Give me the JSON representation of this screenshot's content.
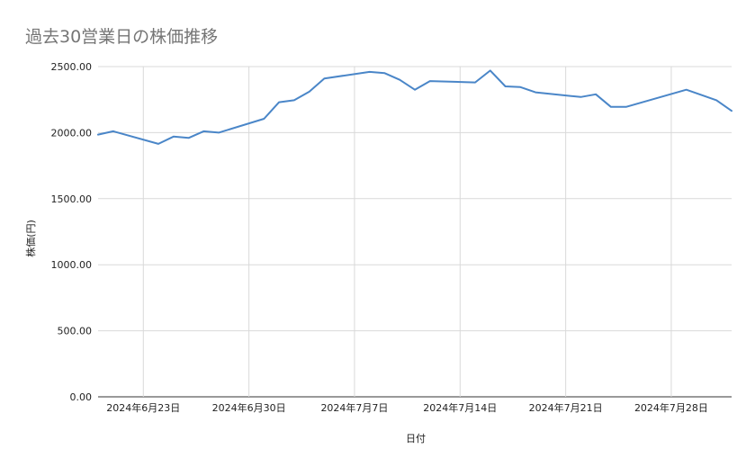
{
  "chart_data": {
    "type": "line",
    "title": "過去30営業日の株価推移",
    "xlabel": "日付",
    "ylabel": "株価(円)",
    "ylim": [
      0,
      2500
    ],
    "yticks": [
      "0.00",
      "500.00",
      "1000.00",
      "1500.00",
      "2000.00",
      "2500.00"
    ],
    "xticks": [
      {
        "date": "2024-06-23",
        "label": "2024年6月23日"
      },
      {
        "date": "2024-06-30",
        "label": "2024年6月30日"
      },
      {
        "date": "2024-07-07",
        "label": "2024年7月7日"
      },
      {
        "date": "2024-07-14",
        "label": "2024年7月14日"
      },
      {
        "date": "2024-07-21",
        "label": "2024年7月21日"
      },
      {
        "date": "2024-07-28",
        "label": "2024年7月28日"
      }
    ],
    "xlim": [
      "2024-06-20",
      "2024-08-01"
    ],
    "grid": true,
    "line_color": "#4a86c8",
    "series": [
      {
        "x": [
          "2024-06-20",
          "2024-06-21",
          "2024-06-24",
          "2024-06-25",
          "2024-06-26",
          "2024-06-27",
          "2024-06-28",
          "2024-07-01",
          "2024-07-02",
          "2024-07-03",
          "2024-07-04",
          "2024-07-05",
          "2024-07-08",
          "2024-07-09",
          "2024-07-10",
          "2024-07-11",
          "2024-07-12",
          "2024-07-15",
          "2024-07-16",
          "2024-07-17",
          "2024-07-18",
          "2024-07-19",
          "2024-07-22",
          "2024-07-23",
          "2024-07-24",
          "2024-07-25",
          "2024-07-29",
          "2024-07-30",
          "2024-07-31",
          "2024-08-01"
        ],
        "values": [
          1985,
          2010,
          1915,
          1970,
          1960,
          2010,
          2000,
          2105,
          2230,
          2245,
          2310,
          2410,
          2460,
          2450,
          2400,
          2325,
          2390,
          2380,
          2470,
          2350,
          2345,
          2305,
          2270,
          2290,
          2195,
          2195,
          2325,
          2285,
          2245,
          2165
        ]
      }
    ]
  }
}
